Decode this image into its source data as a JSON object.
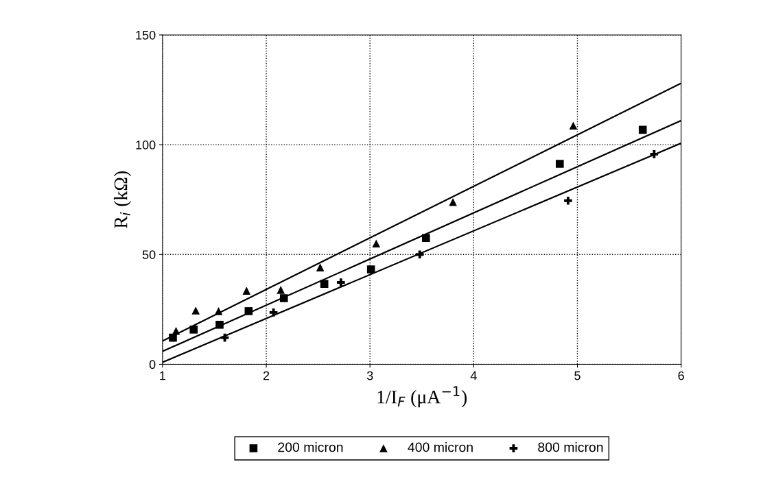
{
  "chart_data": {
    "type": "scatter",
    "xlabel": "1/I$_{F}$ (μA$^{−1}$)",
    "ylabel": "R$_{i}$ (kΩ)",
    "xlim": [
      1,
      6
    ],
    "ylim": [
      0,
      150
    ],
    "xticks": [
      1,
      2,
      3,
      4,
      5,
      6
    ],
    "yticks": [
      0,
      50,
      100,
      150
    ],
    "grid": true,
    "legend": "bottom",
    "series": [
      {
        "name": "200 micron",
        "color": "#000000",
        "marker": "square",
        "x": [
          1.1,
          1.3,
          1.55,
          1.83,
          2.17,
          2.56,
          3.01,
          3.54,
          4.83,
          5.63
        ],
        "values": [
          12.1,
          15.8,
          18,
          24.2,
          30.1,
          36.6,
          43.2,
          57.5,
          91.3,
          106.8
        ]
      },
      {
        "name": "400 micron",
        "color": "#000000",
        "marker": "triangle",
        "x": [
          1.13,
          1.32,
          1.54,
          1.81,
          2.14,
          2.52,
          3.06,
          3.8,
          4.96
        ],
        "values": [
          15.2,
          24.5,
          24.2,
          33.5,
          33.9,
          44.1,
          55,
          73.9,
          108.7
        ]
      },
      {
        "name": "800 micron",
        "color": "#000000",
        "marker": "cross",
        "x": [
          1.6,
          2.07,
          2.72,
          3.48,
          4.91,
          5.74
        ],
        "values": [
          12.1,
          23.6,
          37.3,
          50,
          74.5,
          95.7
        ]
      },
      {
        "type": "line",
        "color": "#000000",
        "x": [
          1,
          6
        ],
        "values": [
          10.6,
          128
        ]
      },
      {
        "type": "line",
        "color": "#000000",
        "x": [
          1,
          6
        ],
        "values": [
          5.9,
          111
        ]
      },
      {
        "type": "line",
        "color": "#000000",
        "x": [
          1,
          6
        ],
        "values": [
          0.9,
          100.7
        ]
      }
    ]
  }
}
